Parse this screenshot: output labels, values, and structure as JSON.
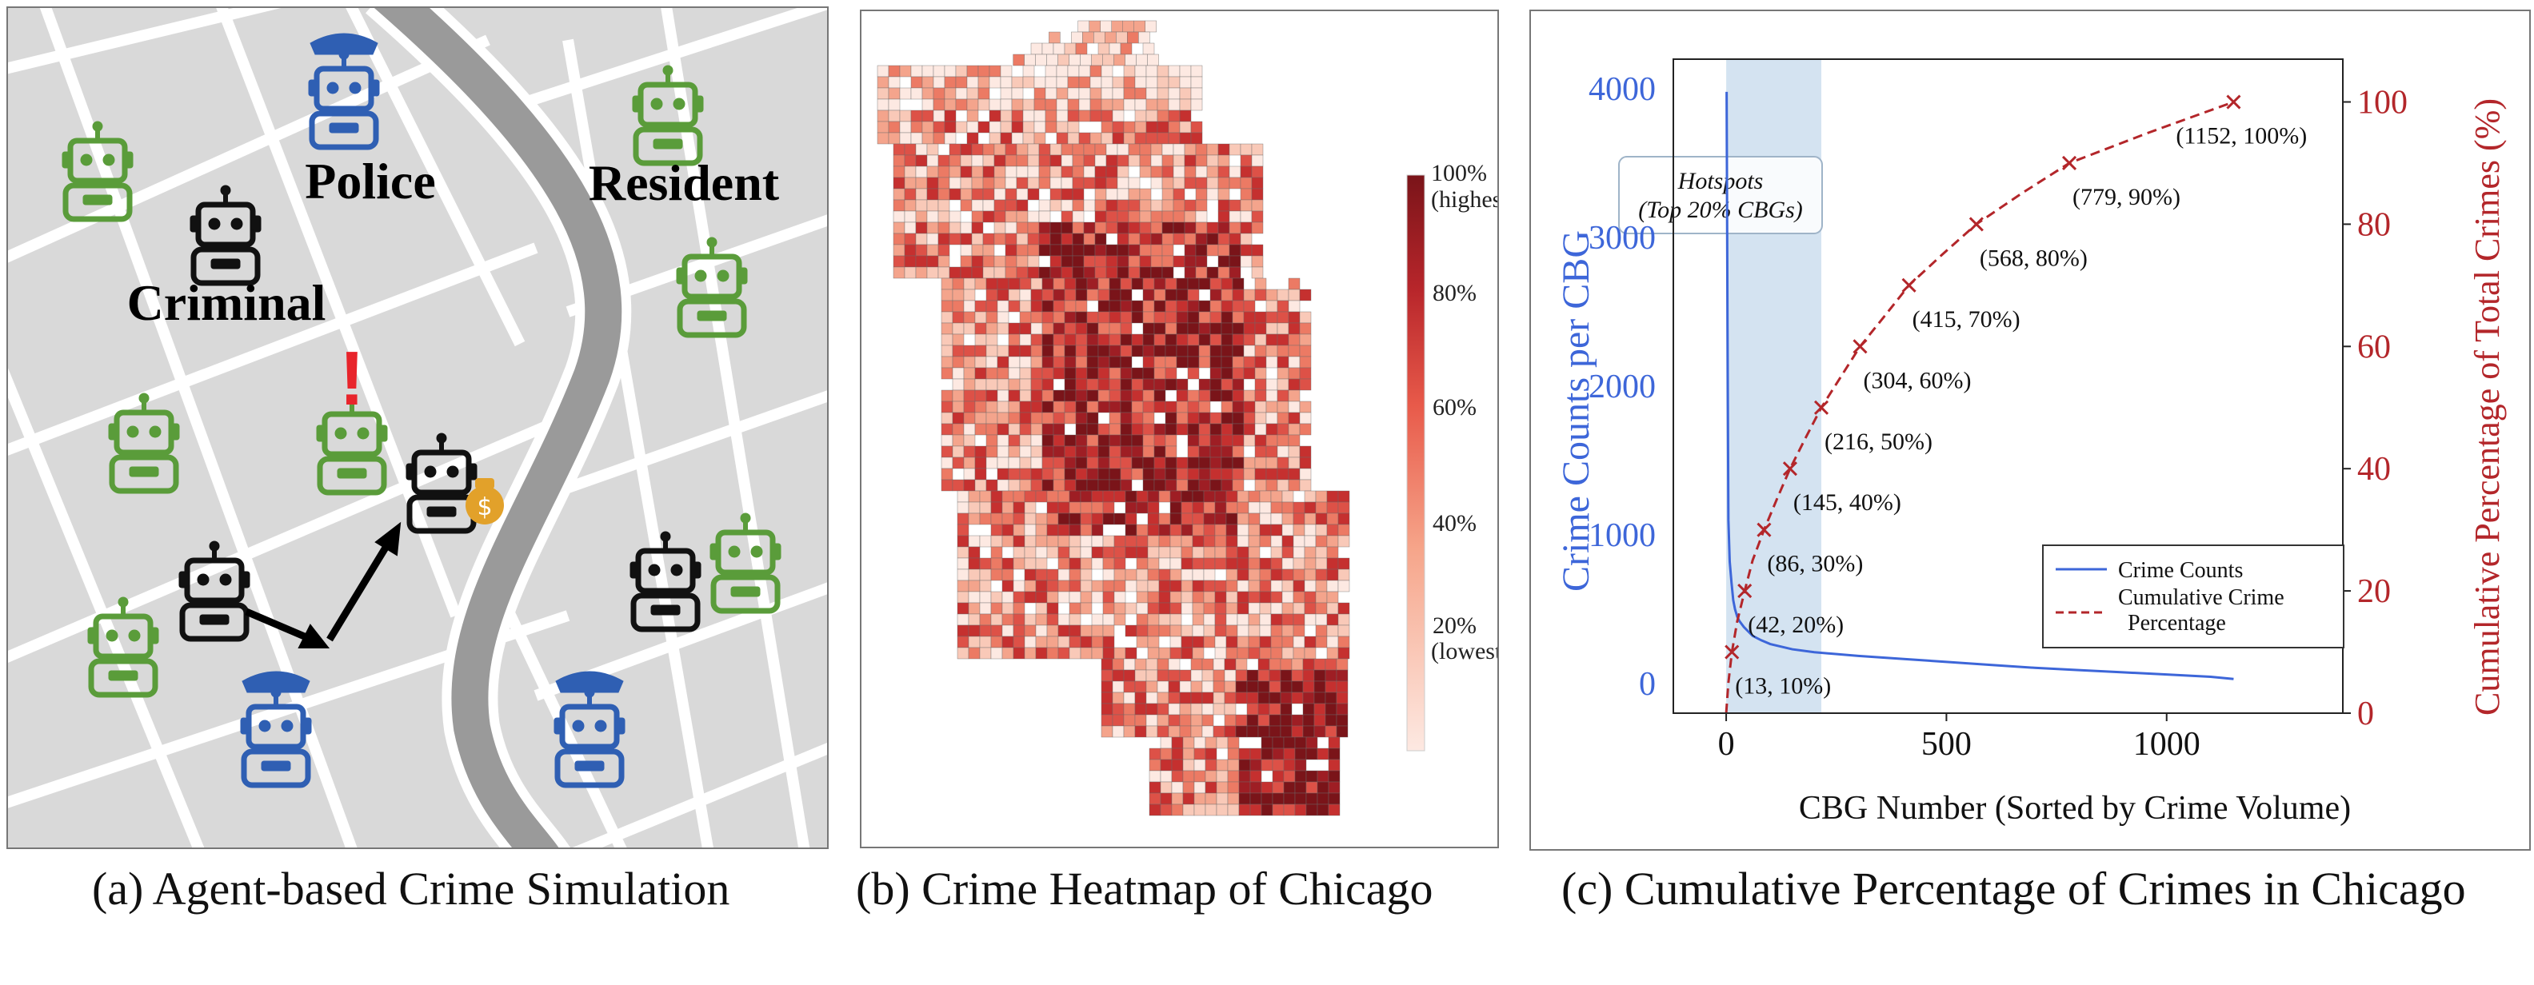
{
  "panel_a": {
    "caption": "(a) Agent-based Crime Simulation",
    "labels": {
      "police": "Police",
      "resident": "Resident",
      "criminal": "Criminal"
    },
    "alert_mark": "!",
    "money_bag_symbol": "$",
    "colors": {
      "police": "#2f5fb3",
      "resident": "#5a9c3a",
      "criminal": "#111111",
      "alert": "#e8242b",
      "road": "#ffffff",
      "river": "#9a9a9a",
      "ground": "#d8d8d8"
    }
  },
  "panel_b": {
    "caption": "(b) Crime Heatmap of Chicago",
    "colorbar": {
      "ticks": [
        {
          "label": "100%",
          "sub": "(highest)"
        },
        {
          "label": "80%",
          "sub": ""
        },
        {
          "label": "60%",
          "sub": ""
        },
        {
          "label": "40%",
          "sub": ""
        },
        {
          "label": "20%",
          "sub": "(lowest)"
        }
      ],
      "color_low": "#fde9e2",
      "color_high": "#7a1419"
    }
  },
  "panel_c": {
    "caption": "(c) Cumulative Percentage of Crimes in Chicago"
  },
  "chart_data": {
    "type": "line",
    "xlabel": "CBG Number (Sorted by Crime Volume)",
    "ylabel_left": "Crime Counts per CBG",
    "ylabel_right": "Cumulative Percentage of Total Crimes (%)",
    "xlim": [
      -120,
      1400
    ],
    "ylim_left": [
      -200,
      4200
    ],
    "ylim_right": [
      0,
      107
    ],
    "x_ticks": [
      0,
      500,
      1000
    ],
    "y_left_ticks": [
      0,
      1000,
      2000,
      3000,
      4000
    ],
    "y_right_ticks": [
      0,
      20,
      40,
      60,
      80,
      100
    ],
    "grid": false,
    "legend_position": "lower-right",
    "hotspot_band": {
      "x_start": 0,
      "x_end": 216,
      "label_line1": "Hotspots",
      "label_line2": "(Top 20% CBGs)",
      "color": "#cfe0ef"
    },
    "series": [
      {
        "name": "Crime Counts",
        "axis": "left",
        "color": "#3d66d9",
        "style": "solid",
        "x": [
          1,
          3,
          5,
          8,
          12,
          16,
          20,
          25,
          30,
          40,
          50,
          60,
          80,
          100,
          150,
          200,
          300,
          400,
          500,
          600,
          700,
          800,
          900,
          1000,
          1100,
          1152
        ],
        "y": [
          3980,
          2400,
          1100,
          820,
          680,
          560,
          500,
          450,
          420,
          380,
          350,
          320,
          290,
          265,
          230,
          210,
          185,
          165,
          145,
          125,
          105,
          90,
          75,
          60,
          45,
          30
        ]
      },
      {
        "name": "Cumulative Crime Percentage",
        "axis": "right",
        "color": "#b3262a",
        "style": "dashed",
        "x": [
          0,
          5,
          13,
          25,
          42,
          60,
          86,
          115,
          145,
          180,
          216,
          260,
          304,
          360,
          415,
          490,
          568,
          670,
          779,
          960,
          1152
        ],
        "y": [
          0,
          5,
          10,
          15,
          20,
          25,
          30,
          35,
          40,
          45,
          50,
          55,
          60,
          65,
          70,
          75,
          80,
          85,
          90,
          95,
          100
        ]
      }
    ],
    "annotations": [
      {
        "x": 13,
        "y": 10,
        "text": "(13, 10%)"
      },
      {
        "x": 42,
        "y": 20,
        "text": "(42, 20%)"
      },
      {
        "x": 86,
        "y": 30,
        "text": "(86, 30%)"
      },
      {
        "x": 145,
        "y": 40,
        "text": "(145, 40%)"
      },
      {
        "x": 216,
        "y": 50,
        "text": "(216, 50%)"
      },
      {
        "x": 304,
        "y": 60,
        "text": "(304, 60%)"
      },
      {
        "x": 415,
        "y": 70,
        "text": "(415, 70%)"
      },
      {
        "x": 568,
        "y": 80,
        "text": "(568, 80%)"
      },
      {
        "x": 779,
        "y": 90,
        "text": "(779, 90%)"
      },
      {
        "x": 1152,
        "y": 100,
        "text": "(1152, 100%)"
      }
    ],
    "legend": [
      {
        "label": "Crime Counts",
        "style": "solid"
      },
      {
        "label": "Cumulative Crime",
        "label2": "Percentage",
        "style": "dashed"
      }
    ]
  }
}
